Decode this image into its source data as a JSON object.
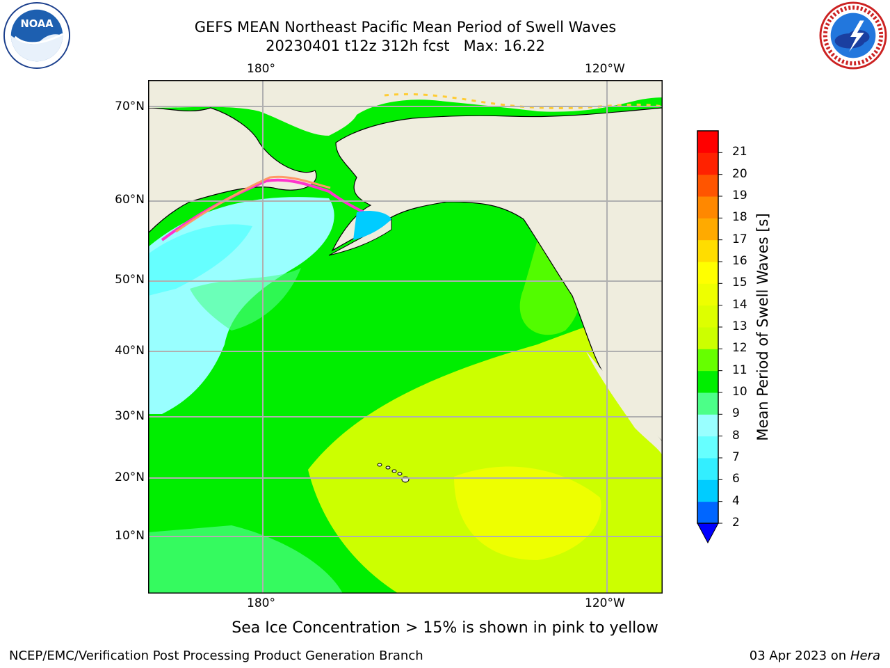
{
  "header": {
    "title_line1": "GEFS MEAN Northeast Pacific Mean Period of Swell Waves",
    "title_line2": "20230401 t12z 312h fcst   Max: 16.22"
  },
  "map": {
    "lon_labels_top": [
      "180°",
      "120°W"
    ],
    "lon_labels_bottom": [
      "180°",
      "120°W"
    ],
    "lat_labels": [
      "70°N",
      "60°N",
      "50°N",
      "40°N",
      "30°N",
      "20°N",
      "10°N"
    ],
    "land_color": "#efedde",
    "grid_color": "#b0b0b0",
    "sea_ice_colors": [
      "#ff33cc",
      "#ff9966",
      "#ffcc33"
    ]
  },
  "colorbar": {
    "title": "Mean Period of Swell Waves [s]",
    "tick_labels": [
      "2",
      "4",
      "6",
      "7",
      "8",
      "9",
      "10",
      "11",
      "12",
      "13",
      "14",
      "15",
      "16",
      "17",
      "18",
      "19",
      "20",
      "21"
    ],
    "colors": [
      "#0066ff",
      "#00ccff",
      "#33eeff",
      "#66ffff",
      "#99ffff",
      "#4cff88",
      "#00ee00",
      "#66ff00",
      "#ccff00",
      "#ddff00",
      "#eeff00",
      "#ffff00",
      "#ffdd00",
      "#ffaa00",
      "#ff8800",
      "#ff5500",
      "#ff2200",
      "#ff0000"
    ],
    "extend_color": "#0000ff"
  },
  "footer": {
    "ice_note": "Sea Ice Concentration > 15% is shown in pink to yellow",
    "credit": "NCEP/EMC/Verification Post Processing Product Generation Branch",
    "date": "03 Apr 2023 on ",
    "host": "Hera"
  },
  "logos": {
    "left": "noaa-logo",
    "right": "nws-logo",
    "left_text": "NOAA"
  }
}
